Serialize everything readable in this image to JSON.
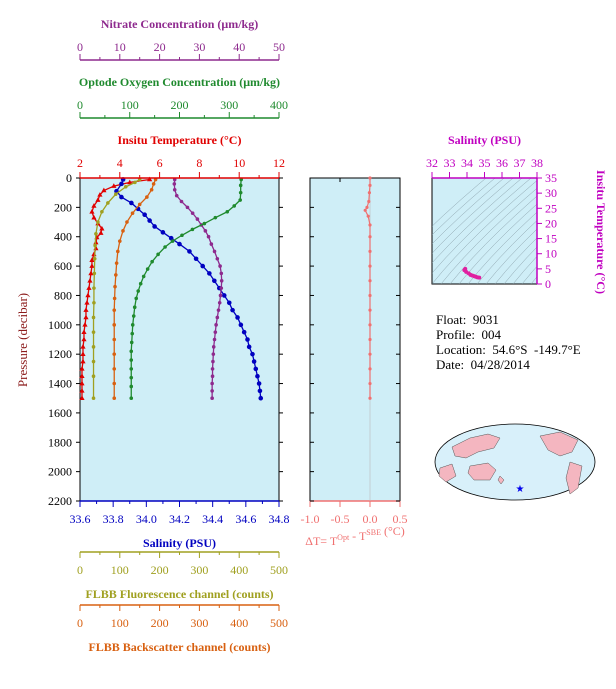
{
  "info": {
    "float": "Float:  9031",
    "profile": "Profile:  004",
    "location": "Location:  54.6°S  -149.7°E",
    "date": "Date:  04/28/2014"
  },
  "footer": " ",
  "chart_data": {
    "type": "line",
    "y_axis": {
      "label": "Pressure (decibar)",
      "range": [
        0,
        2200
      ],
      "ticks": [
        0,
        200,
        400,
        600,
        800,
        1000,
        1200,
        1400,
        1600,
        1800,
        2000,
        2200
      ],
      "inverted": true
    },
    "axes": {
      "nitrate": {
        "label": "Nitrate Concentration (μm/kg)",
        "range": [
          0,
          50
        ],
        "ticks": [
          0,
          10,
          20,
          30,
          40,
          50
        ],
        "color": "#8e2a8e"
      },
      "oxygen": {
        "label": "Optode Oxygen Concentration (μm/kg)",
        "range": [
          0,
          400
        ],
        "ticks": [
          0,
          100,
          200,
          300,
          400
        ],
        "color": "#1f8a2e"
      },
      "temperature": {
        "label": "Insitu Temperature (°C)",
        "range": [
          2,
          12
        ],
        "ticks": [
          2,
          4,
          6,
          8,
          10,
          12
        ],
        "color": "#e00000"
      },
      "salinity": {
        "label": "Salinity (PSU)",
        "range": [
          33.6,
          34.8
        ],
        "ticks": [
          "33.6",
          "33.8",
          "34.0",
          "34.2",
          "34.4",
          "34.6",
          "34.8"
        ],
        "color": "#0000c0"
      },
      "fluorescence": {
        "label": "FLBB Fluorescence channel (counts)",
        "range": [
          0,
          500
        ],
        "ticks": [
          0,
          100,
          200,
          300,
          400,
          500
        ],
        "color": "#a0a020"
      },
      "backscatter": {
        "label": "FLBB Backscatter channel (counts)",
        "range": [
          0,
          500
        ],
        "ticks": [
          0,
          100,
          200,
          300,
          400,
          500
        ],
        "color": "#d86010"
      }
    },
    "series": [
      {
        "axis": "temperature",
        "marker": "triangle",
        "points": [
          [
            5.5,
            10
          ],
          [
            4.5,
            30
          ],
          [
            3.7,
            55
          ],
          [
            3.2,
            85
          ],
          [
            3.0,
            115
          ],
          [
            2.9,
            150
          ],
          [
            2.7,
            190
          ],
          [
            2.6,
            230
          ],
          [
            2.7,
            270
          ],
          [
            2.9,
            310
          ],
          [
            3.1,
            345
          ],
          [
            3.05,
            375
          ],
          [
            2.85,
            405
          ],
          [
            2.8,
            440
          ],
          [
            2.8,
            480
          ],
          [
            2.7,
            520
          ],
          [
            2.6,
            560
          ],
          [
            2.6,
            600
          ],
          [
            2.55,
            650
          ],
          [
            2.5,
            700
          ],
          [
            2.45,
            750
          ],
          [
            2.4,
            800
          ],
          [
            2.35,
            850
          ],
          [
            2.3,
            900
          ],
          [
            2.3,
            950
          ],
          [
            2.25,
            1000
          ],
          [
            2.2,
            1050
          ],
          [
            2.2,
            1100
          ],
          [
            2.15,
            1150
          ],
          [
            2.15,
            1200
          ],
          [
            2.15,
            1250
          ],
          [
            2.1,
            1300
          ],
          [
            2.1,
            1350
          ],
          [
            2.1,
            1400
          ],
          [
            2.1,
            1450
          ],
          [
            2.1,
            1500
          ]
        ]
      },
      {
        "axis": "salinity",
        "marker": "circle",
        "points": [
          [
            33.86,
            10
          ],
          [
            33.85,
            40
          ],
          [
            33.82,
            90
          ],
          [
            33.85,
            130
          ],
          [
            33.91,
            170
          ],
          [
            33.95,
            210
          ],
          [
            33.99,
            250
          ],
          [
            34.02,
            290
          ],
          [
            34.05,
            330
          ],
          [
            34.1,
            370
          ],
          [
            34.15,
            410
          ],
          [
            34.2,
            450
          ],
          [
            34.26,
            500
          ],
          [
            34.3,
            550
          ],
          [
            34.34,
            600
          ],
          [
            34.38,
            650
          ],
          [
            34.41,
            700
          ],
          [
            34.44,
            750
          ],
          [
            34.47,
            800
          ],
          [
            34.5,
            850
          ],
          [
            34.52,
            900
          ],
          [
            34.55,
            950
          ],
          [
            34.57,
            1000
          ],
          [
            34.59,
            1050
          ],
          [
            34.61,
            1100
          ],
          [
            34.62,
            1150
          ],
          [
            34.64,
            1200
          ],
          [
            34.65,
            1250
          ],
          [
            34.66,
            1300
          ],
          [
            34.67,
            1350
          ],
          [
            34.68,
            1400
          ],
          [
            34.685,
            1450
          ],
          [
            34.69,
            1500
          ]
        ]
      },
      {
        "axis": "nitrate",
        "marker": "circle",
        "points": [
          [
            23.8,
            10
          ],
          [
            23.7,
            40
          ],
          [
            23.8,
            80
          ],
          [
            24.3,
            120
          ],
          [
            25.5,
            160
          ],
          [
            27.0,
            200
          ],
          [
            28.3,
            240
          ],
          [
            29.5,
            280
          ],
          [
            30.5,
            320
          ],
          [
            31.5,
            360
          ],
          [
            32.3,
            400
          ],
          [
            33.0,
            450
          ],
          [
            33.8,
            500
          ],
          [
            34.5,
            550
          ],
          [
            35.2,
            600
          ],
          [
            35.5,
            650
          ],
          [
            35.6,
            700
          ],
          [
            35.5,
            750
          ],
          [
            35.3,
            800
          ],
          [
            35.1,
            850
          ],
          [
            34.8,
            900
          ],
          [
            34.5,
            950
          ],
          [
            34.2,
            1000
          ],
          [
            34.0,
            1050
          ],
          [
            33.8,
            1100
          ],
          [
            33.6,
            1150
          ],
          [
            33.5,
            1200
          ],
          [
            33.4,
            1250
          ],
          [
            33.3,
            1300
          ],
          [
            33.3,
            1350
          ],
          [
            33.2,
            1400
          ],
          [
            33.2,
            1450
          ],
          [
            33.2,
            1500
          ]
        ]
      },
      {
        "axis": "oxygen",
        "marker": "circle",
        "points": [
          [
            324,
            10
          ],
          [
            323,
            50
          ],
          [
            323,
            100
          ],
          [
            322,
            150
          ],
          [
            310,
            190
          ],
          [
            296,
            230
          ],
          [
            272,
            270
          ],
          [
            250,
            310
          ],
          [
            226,
            350
          ],
          [
            205,
            390
          ],
          [
            186,
            430
          ],
          [
            171,
            470
          ],
          [
            157,
            520
          ],
          [
            145,
            570
          ],
          [
            136,
            620
          ],
          [
            128,
            670
          ],
          [
            122,
            720
          ],
          [
            117,
            770
          ],
          [
            113,
            820
          ],
          [
            110,
            880
          ],
          [
            108,
            940
          ],
          [
            106,
            1000
          ],
          [
            105,
            1060
          ],
          [
            104,
            1120
          ],
          [
            103,
            1180
          ],
          [
            103,
            1240
          ],
          [
            103,
            1300
          ],
          [
            103,
            1360
          ],
          [
            103,
            1420
          ],
          [
            103,
            1500
          ]
        ]
      },
      {
        "axis": "fluorescence",
        "marker": "circle",
        "points": [
          [
            150,
            10
          ],
          [
            138,
            30
          ],
          [
            115,
            60
          ],
          [
            90,
            110
          ],
          [
            70,
            170
          ],
          [
            55,
            230
          ],
          [
            45,
            300
          ],
          [
            40,
            380
          ],
          [
            38,
            460
          ],
          [
            37,
            550
          ],
          [
            36,
            650
          ],
          [
            35,
            750
          ],
          [
            35,
            850
          ],
          [
            34,
            950
          ],
          [
            34,
            1050
          ],
          [
            34,
            1150
          ],
          [
            34,
            1250
          ],
          [
            34,
            1350
          ],
          [
            34,
            1500
          ]
        ]
      },
      {
        "axis": "backscatter",
        "marker": "circle",
        "points": [
          [
            190,
            10
          ],
          [
            185,
            40
          ],
          [
            180,
            80
          ],
          [
            168,
            130
          ],
          [
            150,
            180
          ],
          [
            132,
            240
          ],
          [
            118,
            300
          ],
          [
            108,
            360
          ],
          [
            100,
            430
          ],
          [
            95,
            500
          ],
          [
            92,
            580
          ],
          [
            90,
            660
          ],
          [
            88,
            740
          ],
          [
            87,
            820
          ],
          [
            86,
            900
          ],
          [
            86,
            1000
          ],
          [
            86,
            1100
          ],
          [
            86,
            1200
          ],
          [
            86,
            1300
          ],
          [
            86,
            1400
          ],
          [
            86,
            1500
          ]
        ]
      }
    ],
    "delta_t_panel": {
      "xlabel": "ΔT= T",
      "xlabel_sup1": "Opt",
      "xlabel_mid": " - T",
      "xlabel_sup2": "SBE",
      "xlabel_unit": " (°C)",
      "range": [
        -1.0,
        0.5
      ],
      "ticks": [
        "-1.0",
        "-0.5",
        "0.0",
        "0.5"
      ],
      "color": "#f07070",
      "points": [
        [
          0.0,
          0
        ],
        [
          0.0,
          50
        ],
        [
          -0.01,
          100
        ],
        [
          -0.02,
          160
        ],
        [
          -0.05,
          200
        ],
        [
          -0.08,
          220
        ],
        [
          -0.03,
          260
        ],
        [
          0.0,
          320
        ],
        [
          0.0,
          400
        ],
        [
          0.0,
          500
        ],
        [
          0.0,
          600
        ],
        [
          0.0,
          700
        ],
        [
          0.0,
          800
        ],
        [
          0.0,
          900
        ],
        [
          0.0,
          1000
        ],
        [
          0.0,
          1100
        ],
        [
          0.0,
          1200
        ],
        [
          0.0,
          1300
        ],
        [
          0.0,
          1400
        ],
        [
          0.0,
          1500
        ]
      ]
    },
    "ts_panel": {
      "title": "Salinity (PSU)",
      "xrange": [
        32,
        38
      ],
      "xticks": [
        32,
        33,
        34,
        35,
        36,
        37,
        38
      ],
      "ylabel": "Insitu Temperature (°C)",
      "yrange": [
        0,
        35
      ],
      "yticks": [
        0,
        5,
        10,
        15,
        20,
        25,
        30,
        35
      ],
      "color": "#e020a0",
      "points": [
        [
          33.9,
          5.0
        ],
        [
          33.85,
          4.6
        ],
        [
          33.95,
          4.0
        ],
        [
          34.1,
          3.5
        ],
        [
          34.2,
          3.0
        ],
        [
          34.3,
          2.8
        ],
        [
          34.4,
          2.6
        ],
        [
          34.5,
          2.4
        ],
        [
          34.6,
          2.2
        ],
        [
          34.7,
          2.1
        ]
      ]
    }
  }
}
